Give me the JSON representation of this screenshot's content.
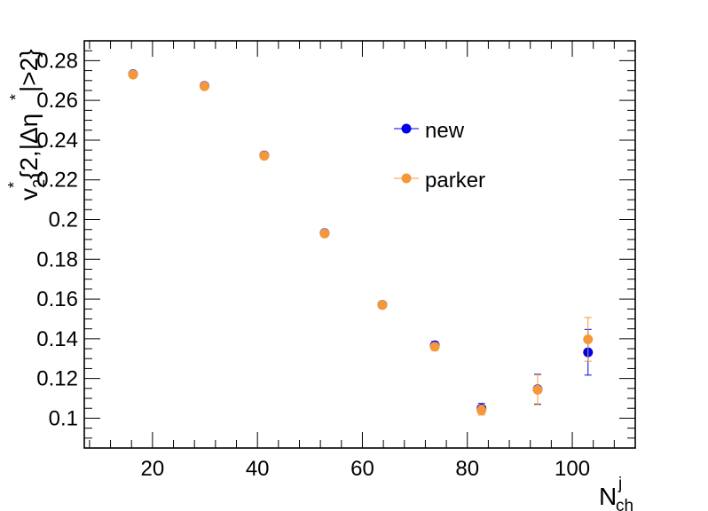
{
  "chart_data": {
    "type": "scatter",
    "title": "",
    "xlabel": {
      "main": "N",
      "sup": "j",
      "sub": "ch"
    },
    "ylabel": {
      "v": "v",
      "sub2": "2",
      "sup_star": "*",
      "rest": "{2,|Δη",
      "sup_star2": "*",
      "end": "|>2}"
    },
    "xlim": [
      7,
      112
    ],
    "ylim": [
      0.085,
      0.29
    ],
    "x_ticks": [
      20,
      40,
      60,
      80,
      100
    ],
    "x_tick_labels": [
      "20",
      "40",
      "60",
      "80",
      "100"
    ],
    "y_ticks": [
      0.1,
      0.12,
      0.14,
      0.16,
      0.18,
      0.2,
      0.22,
      0.24,
      0.26,
      0.28
    ],
    "y_tick_labels": [
      "0.1",
      "0.12",
      "0.14",
      "0.16",
      "0.18",
      "0.2",
      "0.22",
      "0.24",
      "0.26",
      "0.28"
    ],
    "grid": false,
    "legend_position": "top-right",
    "series": [
      {
        "name": "new",
        "color": "#0000ee",
        "points": [
          {
            "x": 16.3,
            "y": 0.2732,
            "err": 0.0012
          },
          {
            "x": 29.9,
            "y": 0.2673,
            "err": 0.0012
          },
          {
            "x": 41.3,
            "y": 0.2323,
            "err": 0.0012
          },
          {
            "x": 52.8,
            "y": 0.1932,
            "err": 0.0015
          },
          {
            "x": 63.8,
            "y": 0.1571,
            "err": 0.0015
          },
          {
            "x": 73.8,
            "y": 0.1367,
            "err": 0.0018
          },
          {
            "x": 82.7,
            "y": 0.1049,
            "err": 0.0025
          },
          {
            "x": 93.4,
            "y": 0.1146,
            "err": 0.0075
          },
          {
            "x": 103.0,
            "y": 0.1332,
            "err": 0.0115
          }
        ]
      },
      {
        "name": "parker",
        "color": "#f5983a",
        "points": [
          {
            "x": 16.3,
            "y": 0.273,
            "err": 0.0012
          },
          {
            "x": 29.9,
            "y": 0.2671,
            "err": 0.0012
          },
          {
            "x": 41.3,
            "y": 0.2321,
            "err": 0.0012
          },
          {
            "x": 52.8,
            "y": 0.193,
            "err": 0.0015
          },
          {
            "x": 63.8,
            "y": 0.157,
            "err": 0.0015
          },
          {
            "x": 73.8,
            "y": 0.136,
            "err": 0.0018
          },
          {
            "x": 82.7,
            "y": 0.1041,
            "err": 0.0025
          },
          {
            "x": 93.4,
            "y": 0.1143,
            "err": 0.0075
          },
          {
            "x": 103.0,
            "y": 0.1397,
            "err": 0.011
          }
        ]
      }
    ]
  }
}
